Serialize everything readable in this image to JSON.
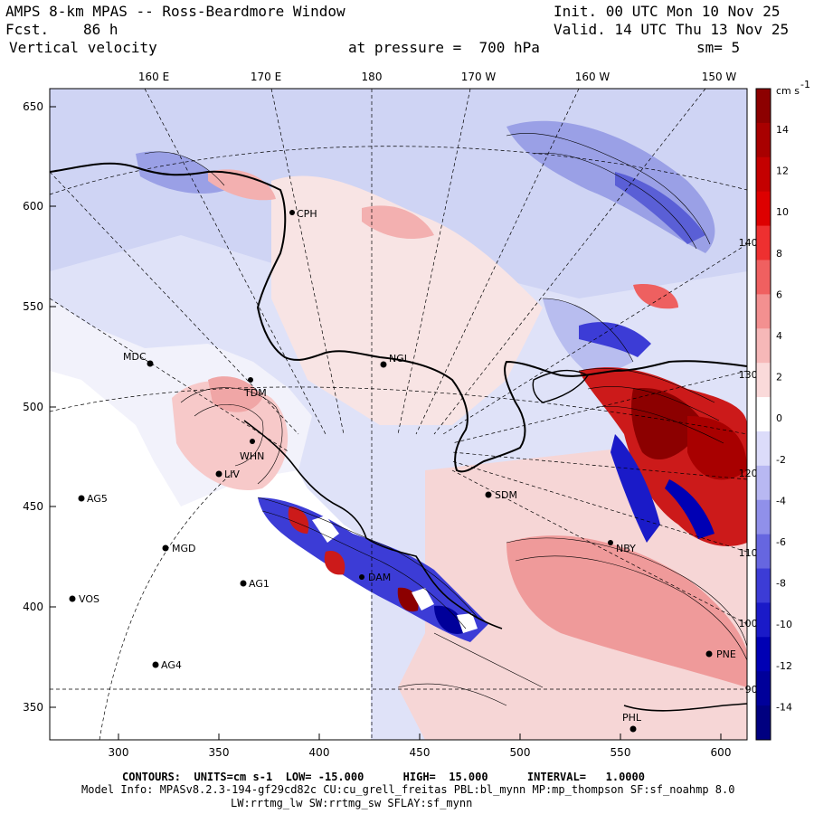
{
  "header": {
    "title": "AMPS 8-km MPAS -- Ross-Beardmore Window",
    "forecast_label": "Fcst.",
    "forecast_value": "86 h",
    "field": "Vertical velocity",
    "init": "Init. 00 UTC Mon 10 Nov 25",
    "valid": "Valid. 14 UTC Thu 13 Nov 25",
    "pressure": "at pressure =  700 hPa",
    "smoothing": "sm= 5"
  },
  "axes": {
    "top_ticks": [
      "160 E",
      "170 E",
      "180",
      "170 W",
      "160 W",
      "150 W"
    ],
    "bottom_ticks": [
      "300",
      "350",
      "400",
      "450",
      "500",
      "550",
      "600"
    ],
    "left_ticks": [
      "650",
      "600",
      "550",
      "500",
      "450",
      "400",
      "350"
    ],
    "right_meridian_labels": [
      "140 W",
      "130 W",
      "120 W",
      "110 W",
      "100 W",
      "90 W"
    ]
  },
  "colorbar": {
    "unit": "cm s",
    "unit_exp": "-1",
    "labels": [
      "14",
      "12",
      "10",
      "8",
      "6",
      "4",
      "2",
      "0",
      "-2",
      "-4",
      "-6",
      "-8",
      "-10",
      "-12",
      "-14"
    ],
    "colors": [
      "#8c0000",
      "#a80000",
      "#c40000",
      "#dd0000",
      "#ee3030",
      "#f06060",
      "#f39090",
      "#f6b8b8",
      "#fadada",
      "#ffffff",
      "#dcdcfa",
      "#b8b8f2",
      "#9090ea",
      "#6666e0",
      "#3c3cd6",
      "#1a1ac8",
      "#0000b4",
      "#00009a",
      "#000080"
    ]
  },
  "stations": [
    {
      "id": "CPH"
    },
    {
      "id": "MDC"
    },
    {
      "id": "TDM"
    },
    {
      "id": "NGL"
    },
    {
      "id": "WHN"
    },
    {
      "id": "LIV"
    },
    {
      "id": "AG5"
    },
    {
      "id": "SDM"
    },
    {
      "id": "MGD"
    },
    {
      "id": "AG1"
    },
    {
      "id": "VOS"
    },
    {
      "id": "AG4"
    },
    {
      "id": "DAM"
    },
    {
      "id": "NBY"
    },
    {
      "id": "PNE"
    },
    {
      "id": "PHL"
    }
  ],
  "footer": {
    "contours": "CONTOURS:  UNITS=cm s-1  LOW= -15.000      HIGH=  15.000      INTERVAL=   1.0000",
    "model_info": "Model Info: MPASv8.2.3-194-gf29cd82c CU:cu_grell_freitas PBL:bl_mynn MP:mp_thompson SF:sf_noahmp 8.0",
    "model_info2": "LW:rrtmg_lw SW:rrtmg_sw SFLAY:sf_mynn"
  },
  "colors": {
    "updraft": "#cc0000",
    "downdraft": "#1a1ac8",
    "background_light_blue": "#d8dcf6",
    "background_light_pink": "#fbdede"
  }
}
